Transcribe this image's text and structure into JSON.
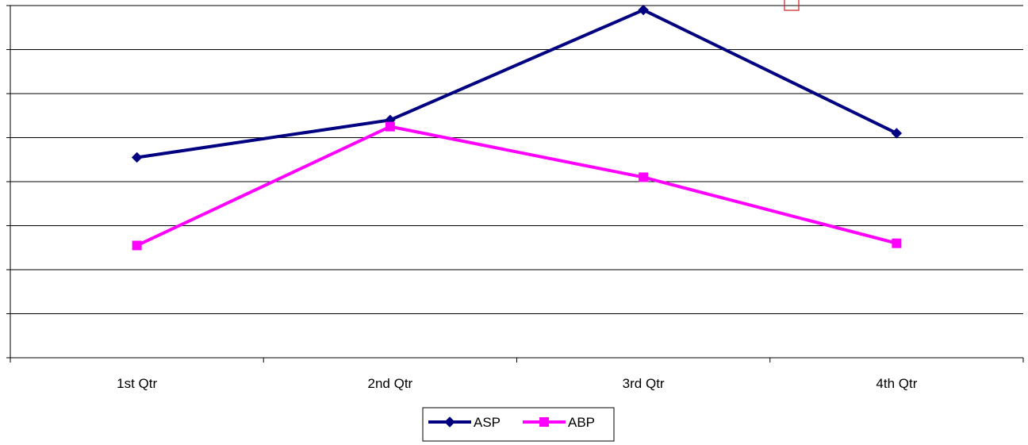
{
  "chart_data": {
    "type": "line",
    "categories": [
      "1st Qtr",
      "2nd Qtr",
      "3rd Qtr",
      "4th Qtr"
    ],
    "series": [
      {
        "name": "ASP",
        "values": [
          3.55,
          4.4,
          6.9,
          4.1
        ],
        "color": "#000080",
        "marker": "diamond"
      },
      {
        "name": "ABP",
        "values": [
          1.55,
          4.25,
          3.1,
          1.6
        ],
        "color": "#FF00FF",
        "marker": "square"
      }
    ],
    "ylim": [
      -1,
      7
    ],
    "y_gridlines": true,
    "y_tick_labels_shown": false,
    "legend_position": "bottom-center",
    "title": "",
    "xlabel": "",
    "ylabel": ""
  }
}
